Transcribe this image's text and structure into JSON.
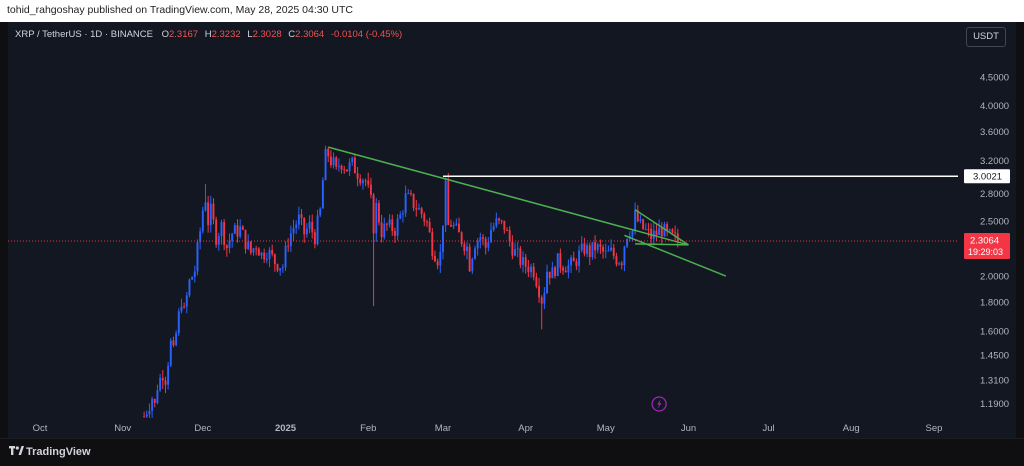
{
  "header": {
    "published_text": "tohid_rahgoshay published on TradingView.com, May 28, 2025 04:30 UTC"
  },
  "legend": {
    "symbol": "XRP / TetherUS · 1D · BINANCE",
    "o_label": "O",
    "o_value": "2.3167",
    "h_label": "H",
    "h_value": "2.3232",
    "l_label": "L",
    "l_value": "2.3028",
    "c_label": "C",
    "c_value": "2.3064",
    "change": "-0.0104 (-0.45%)"
  },
  "currency_button": "USDT",
  "footer": {
    "brand": "TradingView"
  },
  "colors": {
    "up": "#26a69a",
    "down": "#ef5350",
    "candle_up": "#2962ff",
    "candle_down": "#f23645",
    "trendline": "#4caf50",
    "level": "#ffffff"
  },
  "chart_data": {
    "type": "candlestick",
    "y_scale": "log",
    "ylim": [
      1.15,
      5.4
    ],
    "y_ticks": [
      "4.5000",
      "4.0000",
      "3.6000",
      "3.2000",
      "2.8000",
      "2.5000",
      "2.0000",
      "1.8000",
      "1.6000",
      "1.4500",
      "1.3100",
      "1.1900"
    ],
    "x_ticks": [
      {
        "label": "Oct",
        "date": "2024-10-01"
      },
      {
        "label": "Nov",
        "date": "2024-11-01"
      },
      {
        "label": "Dec",
        "date": "2024-12-01"
      },
      {
        "label": "2025",
        "date": "2025-01-01"
      },
      {
        "label": "Feb",
        "date": "2025-02-01"
      },
      {
        "label": "Mar",
        "date": "2025-03-01"
      },
      {
        "label": "Apr",
        "date": "2025-04-01"
      },
      {
        "label": "May",
        "date": "2025-05-01"
      },
      {
        "label": "Jun",
        "date": "2025-06-01"
      },
      {
        "label": "Jul",
        "date": "2025-07-01"
      },
      {
        "label": "Aug",
        "date": "2025-08-01"
      },
      {
        "label": "Sep",
        "date": "2025-09-01"
      }
    ],
    "price_series": [
      [
        "2024-11-09",
        1.13
      ],
      [
        "2024-11-12",
        1.22
      ],
      [
        "2024-11-13",
        1.18
      ],
      [
        "2024-11-14",
        1.28
      ],
      [
        "2024-11-16",
        1.35
      ],
      [
        "2024-11-17",
        1.32
      ],
      [
        "2024-11-19",
        1.52
      ],
      [
        "2024-11-20",
        1.46
      ],
      [
        "2024-11-21",
        1.58
      ],
      [
        "2024-11-23",
        1.82
      ],
      [
        "2024-11-24",
        1.72
      ],
      [
        "2024-11-26",
        1.95
      ],
      [
        "2024-11-28",
        2.05
      ],
      [
        "2024-11-30",
        2.4
      ],
      [
        "2024-12-01",
        2.62
      ],
      [
        "2024-12-02",
        2.75
      ],
      [
        "2024-12-03",
        2.5
      ],
      [
        "2024-12-04",
        2.6
      ],
      [
        "2024-12-06",
        2.35
      ],
      [
        "2024-12-08",
        2.45
      ],
      [
        "2024-12-10",
        2.25
      ],
      [
        "2024-12-12",
        2.38
      ],
      [
        "2024-12-15",
        2.42
      ],
      [
        "2024-12-17",
        2.3
      ],
      [
        "2024-12-19",
        2.2
      ],
      [
        "2024-12-21",
        2.28
      ],
      [
        "2024-12-23",
        2.18
      ],
      [
        "2024-12-25",
        2.22
      ],
      [
        "2024-12-28",
        2.12
      ],
      [
        "2024-12-31",
        2.08
      ],
      [
        "2025-01-02",
        2.32
      ],
      [
        "2025-01-04",
        2.44
      ],
      [
        "2025-01-06",
        2.52
      ],
      [
        "2025-01-08",
        2.38
      ],
      [
        "2025-01-10",
        2.45
      ],
      [
        "2025-01-12",
        2.35
      ],
      [
        "2025-01-14",
        2.6
      ],
      [
        "2025-01-15",
        2.95
      ],
      [
        "2025-01-16",
        3.25
      ],
      [
        "2025-01-17",
        3.28
      ],
      [
        "2025-01-18",
        3.2
      ],
      [
        "2025-01-19",
        3.15
      ],
      [
        "2025-01-20",
        3.05
      ],
      [
        "2025-01-21",
        3.15
      ],
      [
        "2025-01-22",
        3.18
      ],
      [
        "2025-01-24",
        3.1
      ],
      [
        "2025-01-26",
        3.15
      ],
      [
        "2025-01-28",
        3.05
      ],
      [
        "2025-01-31",
        2.95
      ],
      [
        "2025-02-02",
        2.7
      ],
      [
        "2025-02-03",
        2.45
      ],
      [
        "2025-02-04",
        2.65
      ],
      [
        "2025-02-06",
        2.4
      ],
      [
        "2025-02-08",
        2.45
      ],
      [
        "2025-02-11",
        2.42
      ],
      [
        "2025-02-13",
        2.55
      ],
      [
        "2025-02-15",
        2.75
      ],
      [
        "2025-02-17",
        2.72
      ],
      [
        "2025-02-19",
        2.65
      ],
      [
        "2025-02-21",
        2.58
      ],
      [
        "2025-02-23",
        2.48
      ],
      [
        "2025-02-25",
        2.25
      ],
      [
        "2025-02-27",
        2.15
      ],
      [
        "2025-02-28",
        2.18
      ],
      [
        "2025-03-02",
        2.85
      ],
      [
        "2025-03-03",
        2.45
      ],
      [
        "2025-03-04",
        2.48
      ],
      [
        "2025-03-06",
        2.4
      ],
      [
        "2025-03-08",
        2.32
      ],
      [
        "2025-03-10",
        2.25
      ],
      [
        "2025-03-11",
        2.1
      ],
      [
        "2025-03-13",
        2.3
      ],
      [
        "2025-03-15",
        2.35
      ],
      [
        "2025-03-17",
        2.25
      ],
      [
        "2025-03-19",
        2.42
      ],
      [
        "2025-03-21",
        2.48
      ],
      [
        "2025-03-24",
        2.45
      ],
      [
        "2025-03-26",
        2.3
      ],
      [
        "2025-03-28",
        2.2
      ],
      [
        "2025-03-31",
        2.1
      ],
      [
        "2025-04-02",
        2.08
      ],
      [
        "2025-04-04",
        2.05
      ],
      [
        "2025-04-06",
        1.9
      ],
      [
        "2025-04-07",
        1.82
      ],
      [
        "2025-04-08",
        1.9
      ],
      [
        "2025-04-09",
        2.05
      ],
      [
        "2025-04-11",
        2.02
      ],
      [
        "2025-04-13",
        2.12
      ],
      [
        "2025-04-15",
        2.1
      ],
      [
        "2025-04-17",
        2.08
      ],
      [
        "2025-04-19",
        2.1
      ],
      [
        "2025-04-21",
        2.18
      ],
      [
        "2025-04-23",
        2.24
      ],
      [
        "2025-04-25",
        2.2
      ],
      [
        "2025-04-27",
        2.25
      ],
      [
        "2025-04-29",
        2.22
      ],
      [
        "2025-05-01",
        2.18
      ],
      [
        "2025-05-03",
        2.2
      ],
      [
        "2025-05-05",
        2.15
      ],
      [
        "2025-05-07",
        2.14
      ],
      [
        "2025-05-08",
        2.28
      ],
      [
        "2025-05-09",
        2.38
      ],
      [
        "2025-05-10",
        2.42
      ],
      [
        "2025-05-11",
        2.4
      ],
      [
        "2025-05-12",
        2.55
      ],
      [
        "2025-05-13",
        2.5
      ],
      [
        "2025-05-14",
        2.45
      ],
      [
        "2025-05-16",
        2.4
      ],
      [
        "2025-05-18",
        2.35
      ],
      [
        "2025-05-20",
        2.38
      ],
      [
        "2025-05-22",
        2.42
      ],
      [
        "2025-05-24",
        2.36
      ],
      [
        "2025-05-26",
        2.34
      ],
      [
        "2025-05-28",
        2.3064
      ]
    ],
    "spike_wicks": [
      {
        "date": "2025-02-03",
        "low": 1.77
      },
      {
        "date": "2025-03-02",
        "high": 2.99
      },
      {
        "date": "2025-04-07",
        "low": 1.61
      },
      {
        "date": "2024-12-02",
        "high": 2.91
      },
      {
        "date": "2025-01-16",
        "high": 3.4
      }
    ],
    "drawings": {
      "upper_trendline": [
        [
          "2025-01-17",
          3.38
        ],
        [
          "2025-06-01",
          2.27
        ]
      ],
      "lower_trendline": [
        [
          "2025-05-08",
          2.36
        ],
        [
          "2025-06-15",
          2.0
        ]
      ],
      "triangle_upper": [
        [
          "2025-05-12",
          2.62
        ],
        [
          "2025-06-01",
          2.27
        ]
      ],
      "triangle_lower": [
        [
          "2025-05-12",
          2.28
        ],
        [
          "2025-06-01",
          2.27
        ]
      ],
      "resistance_level": {
        "price": 3.0021,
        "start": "2025-03-01",
        "label": "3.0021"
      }
    },
    "last_price": {
      "value": "2.3064",
      "countdown": "19:29:03"
    }
  }
}
